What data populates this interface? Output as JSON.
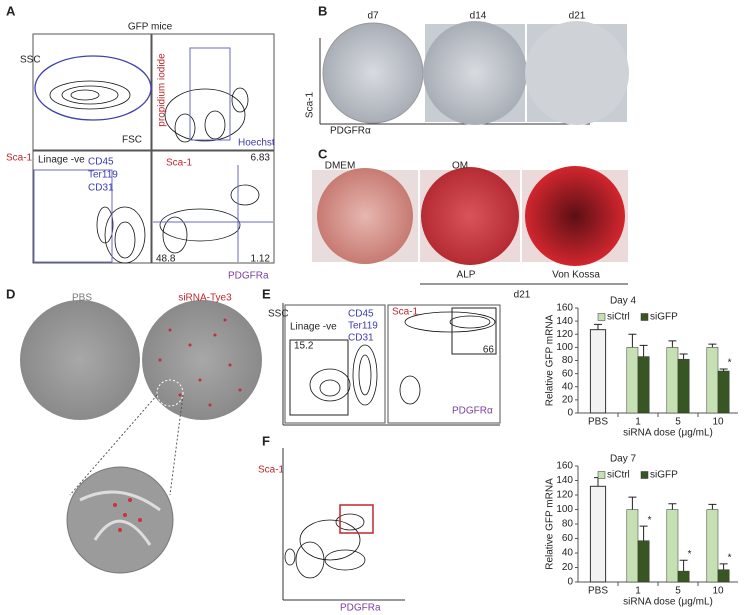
{
  "panels": {
    "A": {
      "label": "A",
      "title": "GFP mice",
      "ssc": "SSC",
      "fsc": "FSC",
      "pi": "propidium iodide",
      "hoechst": "Hoechst",
      "sca1_left": "Sca-1",
      "lineage": "Linage -ve",
      "cd45": "CD45",
      "ter119": "Ter119",
      "cd31": "CD31",
      "sca1_plot": "Sca-1",
      "q1": "6.83",
      "q2": "48.8",
      "q3": "1.12",
      "pdgfra": "PDGFRa"
    },
    "B": {
      "label": "B",
      "d7": "d7",
      "d14": "d14",
      "d21": "d21",
      "sca1": "Sca-1",
      "pdgfra": "PDGFRα"
    },
    "C": {
      "label": "C",
      "dmem": "DMEM",
      "om": "OM",
      "alp": "ALP",
      "vonkossa": "Von Kossa",
      "d21": "d21"
    },
    "D": {
      "label": "D",
      "pbs": "PBS",
      "sirna": "siRNA-Tye3"
    },
    "E": {
      "label": "E",
      "ssc": "SSC",
      "lineage": "Linage -ve",
      "cd45": "CD45",
      "ter119": "Ter119",
      "cd31": "CD31",
      "gate1": "15.2",
      "sca1": "Sca-1",
      "gate2": "66",
      "pdgfra": "PDGFRα"
    },
    "F": {
      "label": "F",
      "sca1": "Sca-1",
      "pdgfra": "PDGFRa"
    }
  },
  "chart_data": [
    {
      "type": "bar",
      "title": "Day 4",
      "ylabel": "Relative GFP mRNA",
      "xlabel": "siRNA dose (μg/mL)",
      "categories": [
        "PBS",
        "1",
        "5",
        "10"
      ],
      "pbs": {
        "value": 127,
        "error": 8,
        "color": "#f2f2f2"
      },
      "series": [
        {
          "name": "siCtrl",
          "color": "#c5e0b3",
          "values": [
            null,
            100,
            100,
            100
          ],
          "errors": [
            null,
            20,
            10,
            5
          ]
        },
        {
          "name": "siGFP",
          "color": "#375623",
          "values": [
            null,
            86,
            82,
            64
          ],
          "errors": [
            null,
            17,
            8,
            3
          ]
        }
      ],
      "annotations": [
        {
          "text": "*",
          "category": "10"
        }
      ],
      "ylim": [
        0,
        160
      ],
      "yticks": [
        0,
        20,
        40,
        60,
        80,
        100,
        120,
        140,
        160
      ]
    },
    {
      "type": "bar",
      "title": "Day 7",
      "ylabel": "Relative GFP mRNA",
      "xlabel": "siRNA dose (μg/mL)",
      "categories": [
        "PBS",
        "1",
        "5",
        "10"
      ],
      "pbs": {
        "value": 132,
        "error": 12,
        "color": "#f2f2f2"
      },
      "series": [
        {
          "name": "siCtrl",
          "color": "#c5e0b3",
          "values": [
            null,
            100,
            100,
            100
          ],
          "errors": [
            null,
            17,
            8,
            7
          ]
        },
        {
          "name": "siGFP",
          "color": "#375623",
          "values": [
            null,
            57,
            15,
            17
          ],
          "errors": [
            null,
            20,
            15,
            8
          ]
        }
      ],
      "annotations": [
        {
          "text": "*",
          "category": "1"
        },
        {
          "text": "*",
          "category": "5"
        },
        {
          "text": "*",
          "category": "10"
        }
      ],
      "ylim": [
        0,
        160
      ],
      "yticks": [
        0,
        20,
        40,
        60,
        80,
        100,
        120,
        140,
        160
      ]
    }
  ]
}
